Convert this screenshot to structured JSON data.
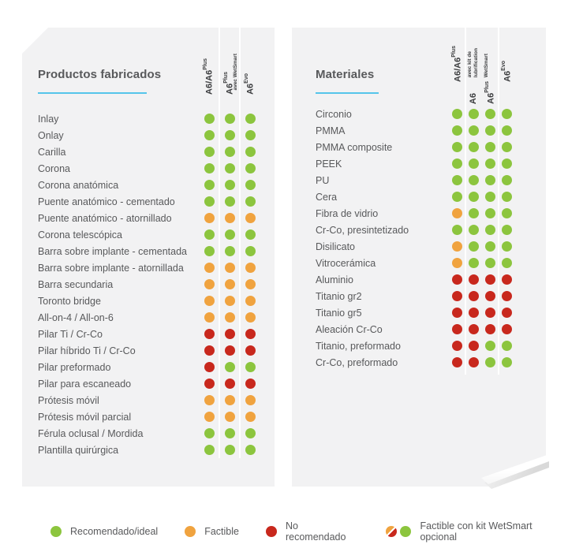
{
  "colors": {
    "green": "#8CC53E",
    "orange": "#F0A33F",
    "red": "#C8281D",
    "accent_blue": "#55C5EA",
    "panel_bg": "#F2F2F3",
    "text": "#58595B",
    "header_text": "#3B3C3E"
  },
  "chart_data": [
    {
      "type": "table",
      "title": "Productos fabricados",
      "legend_position": "bottom",
      "columns": [
        {
          "main": "A6/A6",
          "sup": "Plus",
          "sub": []
        },
        {
          "main": "A6",
          "sup": "Plus",
          "sub": [
            "avec WetSmart"
          ]
        },
        {
          "main": "A6",
          "sup": "Evo",
          "sub": []
        }
      ],
      "rows": [
        {
          "label": "Inlay",
          "dots": [
            "green",
            "green",
            "green"
          ]
        },
        {
          "label": "Onlay",
          "dots": [
            "green",
            "green",
            "green"
          ]
        },
        {
          "label": "Carilla",
          "dots": [
            "green",
            "green",
            "green"
          ]
        },
        {
          "label": "Corona",
          "dots": [
            "green",
            "green",
            "green"
          ]
        },
        {
          "label": "Corona anatómica",
          "dots": [
            "green",
            "green",
            "green"
          ]
        },
        {
          "label": "Puente anatómico - cementado",
          "dots": [
            "green",
            "green",
            "green"
          ]
        },
        {
          "label": "Puente anatómico - atornillado",
          "dots": [
            "orange",
            "orange",
            "orange"
          ]
        },
        {
          "label": "Corona telescópica",
          "dots": [
            "green",
            "green",
            "green"
          ]
        },
        {
          "label": "Barra sobre implante - cementada",
          "dots": [
            "green",
            "green",
            "green"
          ]
        },
        {
          "label": "Barra sobre implante - atornillada",
          "dots": [
            "orange",
            "orange",
            "orange"
          ]
        },
        {
          "label": "Barra secundaria",
          "dots": [
            "orange",
            "orange",
            "orange"
          ]
        },
        {
          "label": "Toronto bridge",
          "dots": [
            "orange",
            "orange",
            "orange"
          ]
        },
        {
          "label": "All-on-4 / All-on-6",
          "dots": [
            "orange",
            "orange",
            "orange"
          ]
        },
        {
          "label": "Pilar Ti / Cr-Co",
          "dots": [
            "red",
            "red",
            "red"
          ]
        },
        {
          "label": "Pilar híbrido Ti / Cr-Co",
          "dots": [
            "red",
            "red",
            "red"
          ]
        },
        {
          "label": "Pilar preformado",
          "dots": [
            "red",
            "green",
            "green"
          ]
        },
        {
          "label": "Pilar para escaneado",
          "dots": [
            "red",
            "red",
            "red"
          ]
        },
        {
          "label": "Prótesis móvil",
          "dots": [
            "orange",
            "orange",
            "orange"
          ]
        },
        {
          "label": "Prótesis móvil parcial",
          "dots": [
            "orange",
            "orange",
            "orange"
          ]
        },
        {
          "label": "Férula oclusal / Mordida",
          "dots": [
            "green",
            "green",
            "green"
          ]
        },
        {
          "label": "Plantilla quirúrgica",
          "dots": [
            "green",
            "green",
            "green"
          ]
        }
      ]
    },
    {
      "type": "table",
      "title": "Materiales",
      "legend_position": "bottom",
      "columns": [
        {
          "main": "A6/A6",
          "sup": "Plus",
          "sub": []
        },
        {
          "main": "A6",
          "sup": "",
          "sub": [
            "avec kit de",
            "lubrification"
          ]
        },
        {
          "main": "A6",
          "sup": "Plus",
          "sub": [
            "WetSmart"
          ]
        },
        {
          "main": "A6",
          "sup": "Evo",
          "sub": []
        }
      ],
      "rows": [
        {
          "label": "Circonio",
          "dots": [
            "green",
            "green",
            "green",
            "green"
          ]
        },
        {
          "label": "PMMA",
          "dots": [
            "green",
            "green",
            "green",
            "green"
          ]
        },
        {
          "label": "PMMA composite",
          "dots": [
            "green",
            "green",
            "green",
            "green"
          ]
        },
        {
          "label": "PEEK",
          "dots": [
            "green",
            "green",
            "green",
            "green"
          ]
        },
        {
          "label": "PU",
          "dots": [
            "green",
            "green",
            "green",
            "green"
          ]
        },
        {
          "label": "Cera",
          "dots": [
            "green",
            "green",
            "green",
            "green"
          ]
        },
        {
          "label": "Fibra de vidrio",
          "dots": [
            "orange",
            "green",
            "green",
            "green"
          ]
        },
        {
          "label": "Cr-Co, presintetizado",
          "dots": [
            "green",
            "green",
            "green",
            "green"
          ]
        },
        {
          "label": "Disilicato",
          "dots": [
            "orange",
            "green",
            "green",
            "green"
          ]
        },
        {
          "label": "Vitrocerámica",
          "dots": [
            "orange",
            "green",
            "green",
            "green"
          ]
        },
        {
          "label": "Aluminio",
          "dots": [
            "red",
            "red",
            "red",
            "red"
          ]
        },
        {
          "label": "Titanio gr2",
          "dots": [
            "red",
            "red",
            "red",
            "red"
          ]
        },
        {
          "label": "Titanio gr5",
          "dots": [
            "red",
            "red",
            "red",
            "red"
          ]
        },
        {
          "label": "Aleación Cr-Co",
          "dots": [
            "red",
            "red",
            "red",
            "red"
          ]
        },
        {
          "label": "Titanio, preformado",
          "dots": [
            "red",
            "red",
            "green",
            "green"
          ]
        },
        {
          "label": "Cr-Co, preformado",
          "dots": [
            "red",
            "red",
            "green",
            "green"
          ]
        }
      ]
    }
  ],
  "legend": {
    "items": [
      {
        "icons": [
          "green"
        ],
        "label": "Recomendado/ideal"
      },
      {
        "icons": [
          "orange"
        ],
        "label": "Factible"
      },
      {
        "icons": [
          "red"
        ],
        "label": "No recomendado"
      },
      {
        "icons": [
          "split",
          "green"
        ],
        "label": "Factible con kit WetSmart opcional"
      }
    ]
  }
}
